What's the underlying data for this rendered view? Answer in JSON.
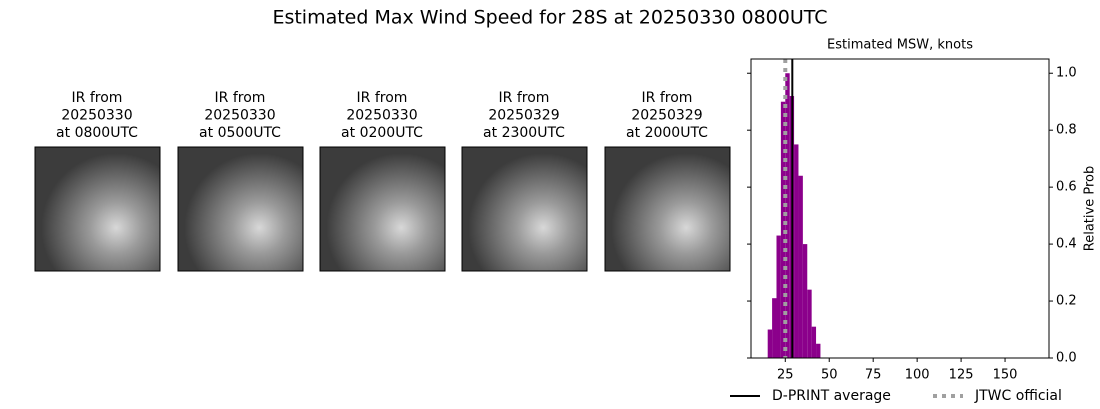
{
  "title": "Estimated Max Wind Speed for 28S at 20250330 0800UTC",
  "panels": [
    {
      "title": [
        "IR from",
        "20250330",
        "at 0800UTC"
      ]
    },
    {
      "title": [
        "IR from",
        "20250330",
        "at 0500UTC"
      ]
    },
    {
      "title": [
        "IR from",
        "20250330",
        "at 0200UTC"
      ]
    },
    {
      "title": [
        "IR from",
        "20250329",
        "at 2300UTC"
      ]
    },
    {
      "title": [
        "IR from",
        "20250329",
        "at 2000UTC"
      ]
    }
  ],
  "chart_data": {
    "type": "histogram",
    "title": "Estimated MSW, knots",
    "y_label": "Relative Prob",
    "bins": [
      15,
      17.5,
      20,
      22.5,
      25,
      27.5,
      30,
      32.5,
      35,
      37.5,
      40,
      42.5,
      45
    ],
    "counts": [
      0.1,
      0.21,
      0.43,
      0.9,
      1.0,
      0.92,
      0.75,
      0.64,
      0.4,
      0.24,
      0.11,
      0.05
    ],
    "color": "#8b008b",
    "xlim": [
      5.5,
      175
    ],
    "ylim": [
      0,
      1.05
    ],
    "xticks": [
      25,
      50,
      75,
      100,
      125,
      150
    ],
    "yticks": [
      {
        "value": 0,
        "label": "0.0"
      },
      {
        "value": 0.2,
        "label": "0.2"
      },
      {
        "value": 0.4,
        "label": "0.4"
      },
      {
        "value": 0.6,
        "label": "0.6"
      },
      {
        "value": 0.8,
        "label": "0.8"
      },
      {
        "value": 1.0,
        "label": "1.0"
      }
    ],
    "lines": [
      {
        "name": "D-PRINT average",
        "value": 29,
        "color": "#000000",
        "dash": false
      },
      {
        "name": "JTWC official",
        "value": 25,
        "color": "#a0a0a0",
        "dash": true
      }
    ]
  }
}
